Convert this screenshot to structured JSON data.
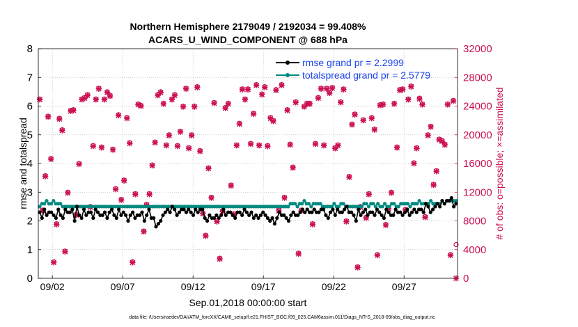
{
  "chart_data": {
    "type": "line",
    "title_line1": "Northern Hemisphere 2179049 / 2192034 = 99.408%",
    "title_line2": "ACARS_U_WIND_COMPONENT @ 688 hPa",
    "xlabel": "Sep.01,2018 00:00:00 start",
    "ylabel_left": "rmse and totalspread",
    "ylabel_right": "# of obs: o=possible; ×=assimilated",
    "footnote": "data file: /Users/raeder/DAI/ATM_forcXX/CAM6_setup/f.e21.FHIST_BGC.f09_025.CAM6assim.011/Diags_NTrS_2018-09/obs_diag_output.nc",
    "xlim": [
      0.5,
      30.3
    ],
    "ylim_left": [
      0,
      8
    ],
    "ylim_right": [
      0,
      32000
    ],
    "x_ticks": [
      1.5,
      6.5,
      11.5,
      16.5,
      21.5,
      26.5
    ],
    "x_tick_labels": [
      "09/02",
      "09/07",
      "09/12",
      "09/17",
      "09/22",
      "09/27"
    ],
    "y_left_ticks": [
      "0",
      "1",
      "2",
      "3",
      "4",
      "5",
      "6",
      "7",
      "8"
    ],
    "y_right_ticks": [
      "0",
      "4000",
      "8000",
      "12000",
      "16000",
      "20000",
      "24000",
      "28000",
      "32000"
    ],
    "legend": [
      {
        "label": "rmse grand pr = 2.2999",
        "color": "#000000"
      },
      {
        "label": "totalspread grand pr = 2.5779",
        "color": "#008a80"
      }
    ],
    "colors": {
      "rmse": "#000000",
      "spread": "#008a80",
      "obs": "#cc1155",
      "legend_text": "#1a44ee"
    },
    "rmse": [
      2.3,
      2.1,
      2.4,
      2.2,
      2.3,
      2.3,
      2.2,
      2.1,
      2.4,
      2.2,
      2.1,
      2.4,
      2.3,
      2.3,
      2.4,
      2.0,
      2.5,
      2.2,
      2.1,
      2.4,
      2.2,
      2.3,
      2.3,
      2.1,
      2.4,
      2.3,
      2.2,
      2.2,
      2.3,
      2.1,
      2.3,
      2.4,
      2.2,
      2.1,
      2.4,
      2.2,
      2.3,
      2.2,
      2.0,
      2.2,
      2.3,
      2.1,
      2.2,
      2.2,
      2.3,
      2.0,
      2.2,
      2.4,
      2.1,
      2.1,
      1.8,
      1.9,
      2.0,
      2.2,
      2.3,
      2.4,
      2.3,
      2.5,
      2.4,
      2.2,
      2.3,
      2.4,
      2.4,
      2.3,
      2.4,
      2.3,
      2.2,
      2.4,
      2.3,
      2.4,
      2.4,
      2.1,
      2.0,
      2.2,
      2.1,
      2.1,
      2.2,
      2.1,
      2.2,
      2.4,
      2.2,
      2.3,
      2.3,
      2.2,
      2.1,
      2.3,
      2.3,
      2.2,
      2.4,
      2.3,
      2.2,
      2.3,
      2.1,
      2.2,
      2.1,
      2.2,
      2.3,
      2.2,
      2.1,
      2.0,
      2.1,
      1.9,
      2.1,
      2.3,
      2.2,
      2.2,
      2.1,
      2.0,
      2.2,
      2.3,
      2.2,
      2.2,
      2.3,
      2.4,
      2.3,
      2.4,
      2.3,
      2.3,
      2.4,
      2.3,
      2.3,
      2.4,
      2.4,
      2.2,
      2.1,
      2.3,
      2.4,
      2.2,
      2.4,
      2.3,
      2.3,
      2.4,
      2.5,
      2.3,
      2.3,
      2.2,
      2.0,
      2.4,
      2.2,
      2.3,
      2.4,
      2.2,
      2.3,
      2.3,
      2.2,
      2.4,
      2.3,
      2.2,
      2.1,
      2.4,
      2.3,
      2.2,
      2.2,
      2.4,
      2.3,
      2.3,
      2.2,
      2.3,
      2.4,
      2.2,
      2.3,
      2.4,
      2.3,
      2.4,
      2.4,
      2.3,
      2.6,
      2.5,
      2.3,
      2.4,
      2.5,
      2.6,
      2.5,
      2.7,
      2.6,
      2.7,
      2.7,
      2.8,
      2.5,
      2.6
    ],
    "spread": [
      2.5,
      2.6,
      2.6,
      2.7,
      2.6,
      2.6,
      2.7,
      2.6,
      2.6,
      2.6,
      2.5,
      2.5,
      2.5,
      2.5,
      2.5,
      2.5,
      2.5,
      2.5,
      2.5,
      2.5,
      2.5,
      2.5,
      2.5,
      2.5,
      2.5,
      2.5,
      2.5,
      2.5,
      2.5,
      2.5,
      2.5,
      2.5,
      2.5,
      2.5,
      2.5,
      2.5,
      2.5,
      2.5,
      2.5,
      2.5,
      2.5,
      2.5,
      2.5,
      2.5,
      2.5,
      2.5,
      2.5,
      2.5,
      2.5,
      2.5,
      2.5,
      2.5,
      2.5,
      2.5,
      2.5,
      2.5,
      2.5,
      2.5,
      2.5,
      2.5,
      2.5,
      2.5,
      2.5,
      2.5,
      2.5,
      2.5,
      2.5,
      2.5,
      2.5,
      2.5,
      2.5,
      2.5,
      2.5,
      2.5,
      2.5,
      2.5,
      2.5,
      2.5,
      2.5,
      2.5,
      2.5,
      2.5,
      2.5,
      2.5,
      2.5,
      2.5,
      2.5,
      2.5,
      2.5,
      2.5,
      2.5,
      2.5,
      2.5,
      2.5,
      2.5,
      2.5,
      2.5,
      2.5,
      2.5,
      2.5,
      2.5,
      2.5,
      2.5,
      2.5,
      2.5,
      2.5,
      2.5,
      2.5,
      2.5,
      2.6,
      2.6,
      2.6,
      2.5,
      2.6,
      2.6,
      2.7,
      2.6,
      2.6,
      2.5,
      2.6,
      2.6,
      2.6,
      2.6,
      2.5,
      2.5,
      2.5,
      2.5,
      2.5,
      2.6,
      2.5,
      2.5,
      2.6,
      2.6,
      2.5,
      2.5,
      2.5,
      2.5,
      2.5,
      2.5,
      2.5,
      2.5,
      2.6,
      2.6,
      2.5,
      2.6,
      2.6,
      2.5,
      2.6,
      2.5,
      2.5,
      2.6,
      2.5,
      2.5,
      2.6,
      2.6,
      2.5,
      2.5,
      2.6,
      2.6,
      2.6,
      2.6,
      2.5,
      2.6,
      2.6,
      2.6,
      2.7,
      2.6,
      2.6,
      2.6,
      2.6,
      2.7,
      2.6,
      2.6,
      2.6,
      2.6,
      2.7,
      2.6,
      2.7,
      2.7,
      2.7,
      2.7,
      2.7
    ],
    "obs_possible": [
      25000,
      9500,
      14300,
      22600,
      16700,
      2300,
      7600,
      22300,
      20700,
      3800,
      12000,
      23400,
      23500,
      8900,
      16000,
      25000,
      25200,
      25600,
      10000,
      18500,
      25000,
      26500,
      18300,
      25000,
      26000,
      25500,
      18000,
      12500,
      22800,
      11000,
      13700,
      22400,
      18900,
      2300,
      11800,
      24300,
      24100,
      6600,
      10300,
      11800,
      15800,
      19000,
      25600,
      26000,
      24400,
      18600,
      20000,
      25000,
      25600,
      18500,
      20500,
      24000,
      26500,
      18200,
      20000,
      24000,
      26700,
      17800,
      9100,
      6000,
      15400,
      11300,
      24500,
      8000,
      2800,
      9400,
      23800,
      24400,
      13000,
      9000,
      18600,
      21600,
      26400,
      25000,
      26400,
      18800,
      23000,
      27000,
      18600,
      25700,
      26700,
      18500,
      22400,
      22000,
      26300,
      9500,
      27000,
      11300,
      23500,
      18700,
      15500,
      24600,
      3500,
      9500,
      24000,
      24400,
      24400,
      7600,
      18800,
      25200,
      26500,
      18600,
      26500,
      25900,
      26600,
      18200,
      18600,
      24600,
      26400,
      8000,
      14200,
      21500,
      22900,
      1600,
      10000,
      22100,
      8500,
      11800,
      22400,
      20800,
      3300,
      24200,
      24300,
      7500,
      9800,
      12000,
      24400,
      18300,
      26300,
      26400,
      9600,
      25000,
      26800,
      16100,
      18200,
      25100,
      24300,
      8600,
      20000,
      21200,
      13100,
      15000,
      19400,
      19200,
      18700,
      24300,
      3300,
      24800,
      4700
    ],
    "obs_assimilated": [
      24900,
      9400,
      14200,
      22500,
      16600,
      2200,
      7500,
      22200,
      20600,
      3700,
      11900,
      23300,
      23400,
      8800,
      15900,
      24900,
      25100,
      25500,
      9900,
      18400,
      24900,
      26400,
      18200,
      24900,
      25900,
      25400,
      17900,
      12400,
      22700,
      10900,
      13600,
      22300,
      18800,
      2200,
      11700,
      24200,
      24000,
      6500,
      10200,
      11700,
      15700,
      18900,
      25500,
      25900,
      24300,
      18500,
      19900,
      24900,
      25500,
      18400,
      20400,
      23900,
      26400,
      18100,
      19900,
      23900,
      26600,
      17700,
      9000,
      5900,
      15300,
      11200,
      24400,
      7900,
      2700,
      9300,
      23700,
      24300,
      12900,
      8900,
      18500,
      21500,
      26300,
      24900,
      26300,
      18700,
      22900,
      26900,
      18500,
      25600,
      26600,
      18400,
      22300,
      21900,
      26200,
      9400,
      26900,
      11200,
      23400,
      18600,
      15400,
      24500,
      3400,
      9400,
      23900,
      24300,
      24300,
      7500,
      18700,
      25100,
      26400,
      18500,
      26400,
      25800,
      26500,
      18100,
      18500,
      24500,
      26300,
      7900,
      14100,
      21400,
      22800,
      1500,
      9900,
      22000,
      8400,
      11700,
      22300,
      20700,
      3200,
      24100,
      24200,
      7400,
      9700,
      11900,
      24300,
      18200,
      26200,
      26300,
      9500,
      24900,
      26700,
      16000,
      18100,
      25000,
      24200,
      8500,
      19900,
      21100,
      13000,
      14900,
      19300,
      19100,
      18600,
      24200,
      3200,
      24700,
      0
    ]
  }
}
